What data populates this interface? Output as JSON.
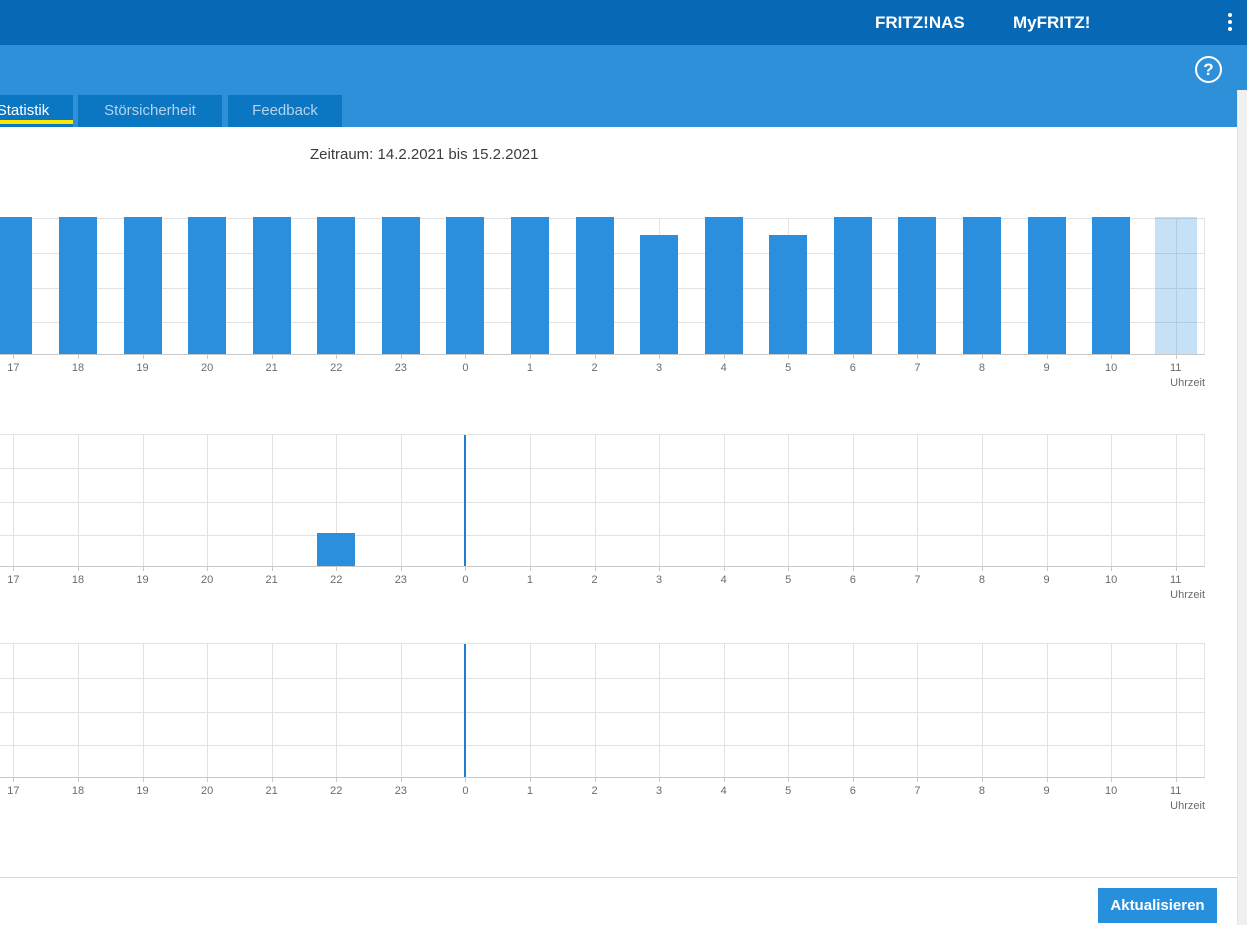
{
  "header": {
    "nas_label": "FRITZ!NAS",
    "myfritz_label": "MyFRITZ!",
    "menu_icon": "kebab-menu-icon",
    "help_icon": "help-icon",
    "help_glyph": "?"
  },
  "tabs": [
    {
      "label": "Statistik",
      "active": true
    },
    {
      "label": "Störsicherheit",
      "active": false
    },
    {
      "label": "Feedback",
      "active": false
    }
  ],
  "period_label": "Zeitraum: 14.2.2021 bis 15.2.2021",
  "footer": {
    "refresh_label": "Aktualisieren"
  },
  "colors": {
    "header_bar": "#0769b5",
    "band": "#2e90d9",
    "tab": "#0b76c2",
    "tab_underline": "#ffe800",
    "inactive_tab_text": "#b5d3ec",
    "bar": "#2b8fdd",
    "bar_light": "rgba(43,143,221,0.27)",
    "day_separator": "#1e7fd0",
    "button": "#2790dc",
    "gridline": "#e2e2e2",
    "axis": "#c9c9c9",
    "label_text": "#6b6b6b"
  },
  "chart_data": [
    {
      "type": "bar",
      "categories": [
        "17",
        "18",
        "19",
        "20",
        "21",
        "22",
        "23",
        "0",
        "1",
        "2",
        "3",
        "4",
        "5",
        "6",
        "7",
        "8",
        "9",
        "10",
        "11"
      ],
      "values": [
        100,
        100,
        100,
        100,
        100,
        100,
        100,
        100,
        100,
        100,
        87,
        100,
        87,
        100,
        100,
        100,
        100,
        100,
        100
      ],
      "unit": "percent of chart max (no y-axis labels visible; left edge of chart cropped)",
      "highlight_category": "11",
      "highlight_style": "light blue (current hour in progress)",
      "day_separator_at": "0",
      "xlabel": "Uhrzeit",
      "ylim": [
        0,
        100
      ],
      "grid": true,
      "legend": "none"
    },
    {
      "type": "bar",
      "categories": [
        "17",
        "18",
        "19",
        "20",
        "21",
        "22",
        "23",
        "0",
        "1",
        "2",
        "3",
        "4",
        "5",
        "6",
        "7",
        "8",
        "9",
        "10",
        "11"
      ],
      "values": [
        0,
        0,
        0,
        0,
        0,
        25,
        0,
        0,
        0,
        0,
        0,
        0,
        0,
        0,
        0,
        0,
        0,
        0,
        0
      ],
      "unit": "percent of chart max (no y-axis labels visible; left edge of chart cropped)",
      "day_separator_at": "0",
      "xlabel": "Uhrzeit",
      "ylim": [
        0,
        100
      ],
      "grid": true,
      "legend": "none"
    },
    {
      "type": "bar",
      "categories": [
        "17",
        "18",
        "19",
        "20",
        "21",
        "22",
        "23",
        "0",
        "1",
        "2",
        "3",
        "4",
        "5",
        "6",
        "7",
        "8",
        "9",
        "10",
        "11"
      ],
      "values": [
        0,
        0,
        0,
        0,
        0,
        0,
        0,
        0,
        0,
        0,
        0,
        0,
        0,
        0,
        0,
        0,
        0,
        0,
        0
      ],
      "unit": "percent of chart max (no y-axis labels visible; left edge of chart cropped)",
      "day_separator_at": "0",
      "xlabel": "Uhrzeit",
      "ylim": [
        0,
        100
      ],
      "grid": true,
      "legend": "none"
    }
  ]
}
